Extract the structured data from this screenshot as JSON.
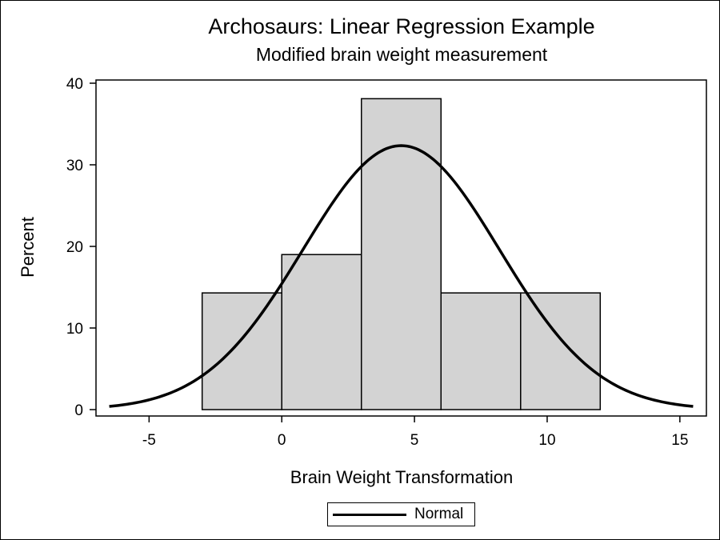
{
  "chart_data": {
    "type": "bar",
    "title": "Archosaurs: Linear Regression Example",
    "subtitle": "Modified brain weight measurement",
    "xlabel": "Brain Weight Transformation",
    "ylabel": "Percent",
    "xlim": [
      -7,
      16
    ],
    "ylim": [
      0,
      40
    ],
    "x_ticks": [
      -5,
      0,
      5,
      10,
      15
    ],
    "y_ticks": [
      0,
      10,
      20,
      30,
      40
    ],
    "bins": [
      {
        "start": -3,
        "end": 0,
        "value": 14.3
      },
      {
        "start": 0,
        "end": 3,
        "value": 19.0
      },
      {
        "start": 3,
        "end": 6,
        "value": 38.1
      },
      {
        "start": 6,
        "end": 9,
        "value": 14.3
      },
      {
        "start": 9,
        "end": 12,
        "value": 14.3
      }
    ],
    "bar_color": "#d3d3d3",
    "curve": {
      "name": "Normal",
      "mean": 4.5,
      "sd": 3.7,
      "bin_width": 3,
      "x_range": [
        -6.5,
        15.5
      ],
      "color": "#000000"
    },
    "legend_position": "bottom",
    "grid": false
  }
}
